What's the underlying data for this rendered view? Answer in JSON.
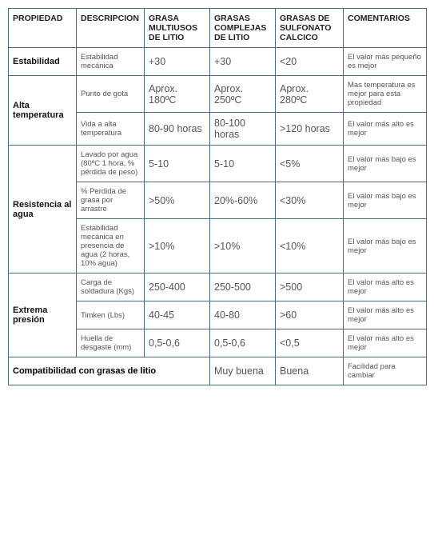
{
  "columns": [
    "PROPIEDAD",
    "DESCRIPCION",
    "GRASA MULTIUSOS DE LITIO",
    "GRASAS COMPLEJAS DE LITIO",
    "GRASAS DE SULFONATO CALCICO",
    "COMENTARIOS"
  ],
  "rows": [
    {
      "prop": "Estabilidad",
      "desc": "Estabilidad mecánica",
      "v1": "+30",
      "v2": "+30",
      "v3": "<20",
      "comment": "El valor más pequeño es mejor",
      "propspan": 1
    },
    {
      "prop": "Alta temperatura",
      "desc": "Punto de gota",
      "v1": "Aprox. 180ºC",
      "v2": "Aprox. 250ºC",
      "v3": "Aprox. 280ºC",
      "comment": "Mas temperatura es mejor para esta propiedad",
      "propspan": 2
    },
    {
      "desc": "Vida a alta temperatura",
      "v1": "80-90 horas",
      "v2": "80-100 horas",
      "v3": ">120 horas",
      "comment": "El valor más alto es mejor"
    },
    {
      "prop": "Resistencia al agua",
      "desc": "Lavado por agua (80ºC 1 hora, % pérdida de peso)",
      "v1": "5-10",
      "v2": "5-10",
      "v3": "<5%",
      "comment": "El valor más bajo es mejor",
      "propspan": 3
    },
    {
      "desc": "% Perdida de grasa por arrastre",
      "v1": ">50%",
      "v2": "20%-60%",
      "v3": "<30%",
      "comment": "El valor más bajo es mejor"
    },
    {
      "desc": "Estabilidad mecánica en presencia de agua (2 horas, 10% agua)",
      "v1": ">10%",
      "v2": ">10%",
      "v3": "<10%",
      "comment": "El valor más bajo es mejor"
    },
    {
      "prop": "Extrema presión",
      "desc": "Carga de soldadura (Kgs)",
      "v1": "250-400",
      "v2": "250-500",
      "v3": ">500",
      "comment": "El valor más alto es mejor",
      "propspan": 3
    },
    {
      "desc": "Timken (Lbs)",
      "v1": "40-45",
      "v2": "40-80",
      "v3": ">60",
      "comment": "El valor más alto es mejor"
    },
    {
      "desc": "Huella de desgaste (mm)",
      "v1": "0,5-0,6",
      "v2": "0,5-0,6",
      "v3": "<0,5",
      "comment": "El valor más alto es mejor"
    }
  ],
  "compat": {
    "label": "Compatibilidad con grasas de litio",
    "v2": "Muy buena",
    "v3": "Buena",
    "comment": "Facilidad para cambiar"
  },
  "colors": {
    "border": "#4a6a8a",
    "text_header": "#222",
    "text_value": "#555"
  }
}
